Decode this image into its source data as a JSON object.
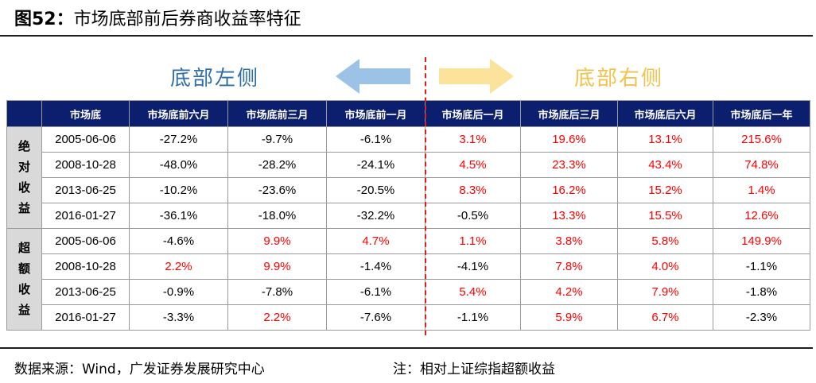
{
  "title": {
    "figure": "图52：",
    "text": "市场底部前后券商收益率特征"
  },
  "labels": {
    "left": "底部左侧",
    "right": "底部右侧"
  },
  "colors": {
    "header_bg": "#0b1f6e",
    "positive_red": "#ff0000",
    "left_blue": "#2e6fa8",
    "right_yellow": "#f2c24a",
    "arrow_left": "#9cc3e6",
    "arrow_right": "#fbe39b",
    "divider": "#e21b1b"
  },
  "table": {
    "headers": [
      "市场底",
      "市场底前六月",
      "市场底前三月",
      "市场底前一月",
      "市场底后一月",
      "市场底后三月",
      "市场底后六月",
      "市场底后一年"
    ],
    "groups": [
      {
        "name": [
          "绝",
          "对",
          "收",
          "益"
        ],
        "rows": [
          {
            "date": "2005-06-06",
            "values": [
              "-27.2%",
              "-9.7%",
              "-6.1%",
              "3.1%",
              "19.6%",
              "13.1%",
              "215.6%"
            ],
            "red": [
              false,
              false,
              false,
              true,
              true,
              true,
              true
            ]
          },
          {
            "date": "2008-10-28",
            "values": [
              "-48.0%",
              "-28.2%",
              "-24.1%",
              "4.5%",
              "23.3%",
              "43.4%",
              "74.8%"
            ],
            "red": [
              false,
              false,
              false,
              true,
              true,
              true,
              true
            ]
          },
          {
            "date": "2013-06-25",
            "values": [
              "-10.2%",
              "-23.6%",
              "-20.5%",
              "8.3%",
              "16.2%",
              "15.2%",
              "1.4%"
            ],
            "red": [
              false,
              false,
              false,
              true,
              true,
              true,
              true
            ]
          },
          {
            "date": "2016-01-27",
            "values": [
              "-36.1%",
              "-18.0%",
              "-32.2%",
              "-0.5%",
              "13.3%",
              "15.5%",
              "12.6%"
            ],
            "red": [
              false,
              false,
              false,
              false,
              true,
              true,
              true
            ]
          }
        ]
      },
      {
        "name": [
          "超",
          "额",
          "收",
          "益"
        ],
        "rows": [
          {
            "date": "2005-06-06",
            "values": [
              "-4.6%",
              "9.9%",
              "4.7%",
              "1.1%",
              "3.8%",
              "5.8%",
              "149.9%"
            ],
            "red": [
              false,
              true,
              true,
              true,
              true,
              true,
              true
            ]
          },
          {
            "date": "2008-10-28",
            "values": [
              "2.2%",
              "9.9%",
              "-1.4%",
              "-4.1%",
              "7.8%",
              "4.0%",
              "-1.1%"
            ],
            "red": [
              true,
              true,
              false,
              false,
              true,
              true,
              false
            ]
          },
          {
            "date": "2013-06-25",
            "values": [
              "-0.9%",
              "-7.8%",
              "-6.1%",
              "5.4%",
              "4.2%",
              "7.9%",
              "-1.8%"
            ],
            "red": [
              false,
              false,
              false,
              true,
              true,
              true,
              false
            ]
          },
          {
            "date": "2016-01-27",
            "values": [
              "-3.3%",
              "2.2%",
              "-7.6%",
              "-1.1%",
              "5.9%",
              "6.7%",
              "-2.3%"
            ],
            "red": [
              false,
              true,
              false,
              false,
              true,
              true,
              false
            ]
          }
        ]
      }
    ]
  },
  "footer": {
    "source": "数据来源：Wind，广发证券发展研究中心",
    "note": "注：相对上证综指超额收益"
  }
}
